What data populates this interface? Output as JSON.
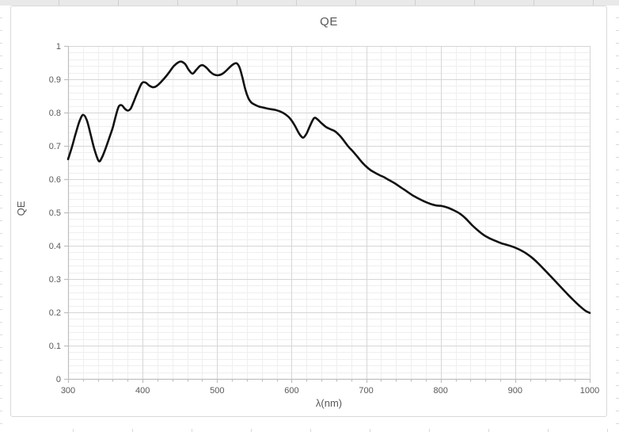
{
  "chart_data": {
    "type": "line",
    "title": "QE",
    "xlabel": "λ(nm)",
    "ylabel": "QE",
    "xlim": [
      300,
      1000
    ],
    "ylim": [
      0,
      1
    ],
    "x_major_step": 100,
    "x_minor_step": 20,
    "y_major_step": 0.1,
    "y_minor_step": 0.02,
    "x_major_tick_labels": [
      "300",
      "400",
      "500",
      "600",
      "700",
      "800",
      "900",
      "1000"
    ],
    "y_major_tick_labels": [
      "0",
      "0.1",
      "0.2",
      "0.3",
      "0.4",
      "0.5",
      "0.6",
      "0.7",
      "0.8",
      "0.9",
      "1"
    ],
    "grid": "major and minor gridlines on both axes",
    "legend_position": "none",
    "series": [
      {
        "name": "QE",
        "x": [
          300,
          305,
          310,
          315,
          320,
          325,
          330,
          335,
          341,
          345,
          350,
          355,
          360,
          364,
          368,
          372,
          376,
          380,
          384,
          388,
          393,
          399,
          404,
          409,
          414,
          419,
          424,
          430,
          436,
          442,
          448,
          452,
          457,
          462,
          467,
          472,
          477,
          481,
          486,
          491,
          496,
          501,
          506,
          511,
          516,
          521,
          526,
          530,
          534,
          538,
          542,
          546,
          551,
          556,
          562,
          570,
          578,
          586,
          592,
          598,
          604,
          609,
          613,
          616,
          620,
          625,
          630,
          634,
          640,
          646,
          652,
          658,
          664,
          670,
          676,
          682,
          688,
          694,
          700,
          706,
          712,
          718,
          724,
          730,
          738,
          746,
          754,
          762,
          770,
          778,
          786,
          794,
          802,
          810,
          818,
          826,
          834,
          842,
          850,
          858,
          866,
          874,
          882,
          890,
          898,
          906,
          914,
          922,
          930,
          938,
          946,
          954,
          962,
          970,
          978,
          986,
          994,
          1000
        ],
        "y": [
          0.66,
          0.695,
          0.735,
          0.772,
          0.793,
          0.778,
          0.737,
          0.692,
          0.655,
          0.663,
          0.69,
          0.722,
          0.755,
          0.79,
          0.818,
          0.822,
          0.812,
          0.806,
          0.812,
          0.832,
          0.86,
          0.888,
          0.89,
          0.881,
          0.876,
          0.88,
          0.89,
          0.905,
          0.922,
          0.94,
          0.951,
          0.953,
          0.946,
          0.928,
          0.917,
          0.928,
          0.94,
          0.942,
          0.934,
          0.922,
          0.914,
          0.912,
          0.915,
          0.923,
          0.934,
          0.944,
          0.948,
          0.936,
          0.905,
          0.868,
          0.843,
          0.83,
          0.823,
          0.818,
          0.815,
          0.811,
          0.808,
          0.802,
          0.794,
          0.782,
          0.762,
          0.741,
          0.728,
          0.725,
          0.737,
          0.762,
          0.783,
          0.781,
          0.768,
          0.757,
          0.75,
          0.744,
          0.732,
          0.716,
          0.698,
          0.684,
          0.668,
          0.652,
          0.638,
          0.627,
          0.619,
          0.612,
          0.606,
          0.598,
          0.588,
          0.576,
          0.564,
          0.552,
          0.542,
          0.533,
          0.526,
          0.521,
          0.519,
          0.514,
          0.506,
          0.496,
          0.481,
          0.462,
          0.446,
          0.432,
          0.422,
          0.414,
          0.407,
          0.402,
          0.396,
          0.388,
          0.378,
          0.365,
          0.349,
          0.331,
          0.312,
          0.293,
          0.274,
          0.255,
          0.237,
          0.22,
          0.205,
          0.198
        ]
      }
    ]
  },
  "colors": {
    "text": "#595959",
    "axis_line": "#bfbfbf",
    "major_grid": "#d6d6d6",
    "minor_grid": "#efefef",
    "chart_border": "#d9d9d9",
    "series_line": "#121212"
  }
}
